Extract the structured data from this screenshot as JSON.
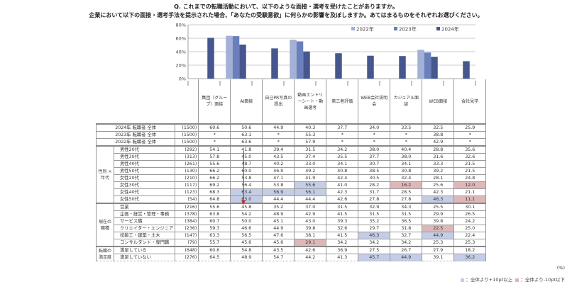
{
  "title_line1": "Q. これまでの転職活動において、以下のような面接・選考を受けたことがありますか。",
  "title_line2": "企業において以下の面接・選考手法を提示された場合、「あなたの受験意欲」に何らかの影響を及ぼしますか。あてはまるものをそれぞれお選びください。",
  "colors": {
    "s2022": "#a3b1d6",
    "s2023": "#6a7fbb",
    "s2024": "#46578f",
    "blue_hl": "#c5cde6",
    "red_hl": "#deb8b8",
    "arrow": "#e02020"
  },
  "chart_data": {
    "type": "bar",
    "categories": [
      "集団（グループ）面接",
      "AI面接",
      "自己PR写真の提出",
      "動画エントリーシート・動画選考",
      "第三者評価",
      "WEB会社説明会",
      "カジュアル面談",
      "WEB面接",
      "会社見学"
    ],
    "series": [
      {
        "name": "2022年",
        "values": [
          null,
          63.6,
          null,
          57.9,
          null,
          null,
          null,
          42.9,
          null
        ]
      },
      {
        "name": "2023年",
        "values": [
          null,
          63.1,
          null,
          55.3,
          null,
          null,
          null,
          38.8,
          null
        ]
      },
      {
        "name": "2024年",
        "values": [
          60.6,
          50.6,
          44.9,
          40.3,
          37.7,
          34.0,
          33.5,
          32.5,
          25.9
        ]
      }
    ],
    "yticks": [
      "0%",
      "20%",
      "40%",
      "60%",
      "80%"
    ],
    "ylim": [
      0,
      80
    ],
    "grid": true,
    "legend": "top-right"
  },
  "table": {
    "headers": [
      "集団（グループ）面接",
      "AI面接",
      "自己PR写真の提出",
      "動画エントリーシート・動画選考",
      "第三者評価",
      "WEB会社説明会",
      "カジュアル面談",
      "WEB面接",
      "会社見学"
    ],
    "totals": [
      {
        "label": "2024年 転職者 全体",
        "n": "(1500)",
        "values": [
          "60.6",
          "50.6",
          "44.9",
          "40.3",
          "37.7",
          "34.0",
          "33.5",
          "32.5",
          "25.9"
        ]
      },
      {
        "label": "2023年 転職者 全体",
        "n": "(1500)",
        "values": [
          "*",
          "63.1",
          "*",
          "55.3",
          "*",
          "*",
          "*",
          "38.8",
          "*"
        ]
      },
      {
        "label": "2022年 転職者 全体",
        "n": "(1500)",
        "values": [
          "*",
          "63.6",
          "*",
          "57.9",
          "*",
          "*",
          "*",
          "42.9",
          "*"
        ]
      }
    ],
    "groups": [
      {
        "label": "性別 × 年代",
        "rows": [
          {
            "label": "男性20代",
            "n": "(292)",
            "values": [
              "54.1",
              "41.8",
              "39.4",
              "31.5",
              "34.2",
              "38.0",
              "40.4",
              "28.8",
              "35.6"
            ],
            "hl": [
              "",
              "",
              "",
              "",
              "",
              "",
              "",
              "",
              ""
            ]
          },
          {
            "label": "男性30代",
            "n": "(313)",
            "values": [
              "57.8",
              "45.0",
              "43.5",
              "37.4",
              "35.5",
              "37.7",
              "38.0",
              "31.6",
              "32.6"
            ],
            "hl": [
              "",
              "",
              "",
              "",
              "",
              "",
              "",
              "",
              ""
            ]
          },
          {
            "label": "男性40代",
            "n": "(261)",
            "values": [
              "55.6",
              "48.7",
              "40.2",
              "33.0",
              "34.1",
              "30.7",
              "34.1",
              "33.3",
              "21.5"
            ],
            "hl": [
              "",
              "",
              "",
              "",
              "",
              "",
              "",
              "",
              ""
            ]
          },
          {
            "label": "男性50代",
            "n": "(130)",
            "values": [
              "66.2",
              "60.0",
              "46.9",
              "49.2",
              "40.8",
              "38.5",
              "30.8",
              "39.2",
              "21.5"
            ],
            "hl": [
              "",
              "",
              "",
              "",
              "",
              "",
              "",
              "",
              ""
            ]
          },
          {
            "label": "女性20代",
            "n": "(210)",
            "values": [
              "66.2",
              "53.8",
              "47.1",
              "41.9",
              "42.4",
              "30.5",
              "32.4",
              "28.1",
              "24.8"
            ],
            "hl": [
              "",
              "",
              "",
              "",
              "",
              "",
              "",
              "",
              ""
            ]
          },
          {
            "label": "女性30代",
            "n": "(117)",
            "values": [
              "69.2",
              "56.4",
              "53.8",
              "55.6",
              "41.0",
              "28.2",
              "16.2",
              "25.6",
              "12.0"
            ],
            "hl": [
              "",
              "",
              "",
              "b",
              "",
              "",
              "r",
              "",
              "r"
            ]
          },
          {
            "label": "女性40代",
            "n": "(123)",
            "values": [
              "68.3",
              "63.4",
              "56.9",
              "56.1",
              "42.3",
              "31.7",
              "28.5",
              "42.3",
              "21.1"
            ],
            "hl": [
              "",
              "b",
              "b",
              "b",
              "",
              "",
              "",
              "",
              ""
            ]
          },
          {
            "label": "女性50代",
            "n": "(54)",
            "values": [
              "64.8",
              "63.0",
              "44.4",
              "44.4",
              "42.6",
              "27.8",
              "27.8",
              "46.3",
              "11.1"
            ],
            "hl": [
              "",
              "b",
              "",
              "",
              "",
              "",
              "",
              "b",
              "r"
            ]
          }
        ]
      },
      {
        "label": "現在の職種",
        "rows": [
          {
            "label": "営業",
            "n": "(216)",
            "values": [
              "55.6",
              "45.8",
              "35.2",
              "37.0",
              "31.5",
              "32.9",
              "34.3",
              "25.5",
              "30.1"
            ],
            "hl": [
              "",
              "",
              "",
              "",
              "",
              "",
              "",
              "",
              ""
            ]
          },
          {
            "label": "企画・経営・管理・事務",
            "n": "(378)",
            "values": [
              "63.8",
              "54.2",
              "48.9",
              "42.9",
              "41.5",
              "31.5",
              "31.5",
              "29.9",
              "26.5"
            ],
            "hl": [
              "",
              "",
              "",
              "",
              "",
              "",
              "",
              "",
              ""
            ]
          },
          {
            "label": "サービス職",
            "n": "(384)",
            "values": [
              "60.7",
              "50.0",
              "45.1",
              "43.0",
              "39.3",
              "35.2",
              "36.5",
              "39.8",
              "24.2"
            ],
            "hl": [
              "",
              "",
              "",
              "",
              "",
              "",
              "",
              "",
              ""
            ]
          },
          {
            "label": "クリエイター・エンジニア",
            "n": "(236)",
            "values": [
              "59.3",
              "46.6",
              "44.9",
              "39.8",
              "32.6",
              "29.7",
              "31.8",
              "22.5",
              "25.0"
            ],
            "hl": [
              "",
              "",
              "",
              "",
              "",
              "",
              "",
              "r",
              ""
            ]
          },
          {
            "label": "技能工・建築・土木",
            "n": "(147)",
            "values": [
              "63.3",
              "56.5",
              "47.6",
              "38.1",
              "41.5",
              "46.3",
              "32.7",
              "44.9",
              "22.4"
            ],
            "hl": [
              "",
              "",
              "",
              "",
              "",
              "b",
              "",
              "b",
              ""
            ]
          },
          {
            "label": "コンサルタント・専門職",
            "n": "(79)",
            "values": [
              "55.7",
              "45.6",
              "45.6",
              "29.1",
              "34.2",
              "34.2",
              "34.2",
              "25.3",
              "25.3"
            ],
            "hl": [
              "",
              "",
              "",
              "r",
              "",
              "",
              "",
              "",
              ""
            ]
          }
        ]
      },
      {
        "label": "転職の満足度",
        "rows": [
          {
            "label": "満足している",
            "n": "(648)",
            "values": [
              "60.6",
              "54.8",
              "43.5",
              "42.6",
              "36.9",
              "27.5",
              "26.7",
              "27.9",
              "18.2"
            ],
            "hl": [
              "",
              "",
              "",
              "",
              "",
              "",
              "",
              "",
              ""
            ]
          },
          {
            "label": "満足していない",
            "n": "(276)",
            "values": [
              "64.5",
              "48.9",
              "54.7",
              "44.2",
              "41.3",
              "45.7",
              "44.9",
              "39.1",
              "36.2"
            ],
            "hl": [
              "",
              "",
              "",
              "",
              "",
              "b",
              "b",
              "",
              "b"
            ]
          }
        ]
      }
    ]
  },
  "footer": {
    "unit": "(%)",
    "legend_blue": "：全体より+10pt以上",
    "legend_red": "：全体より-10pt以下"
  }
}
